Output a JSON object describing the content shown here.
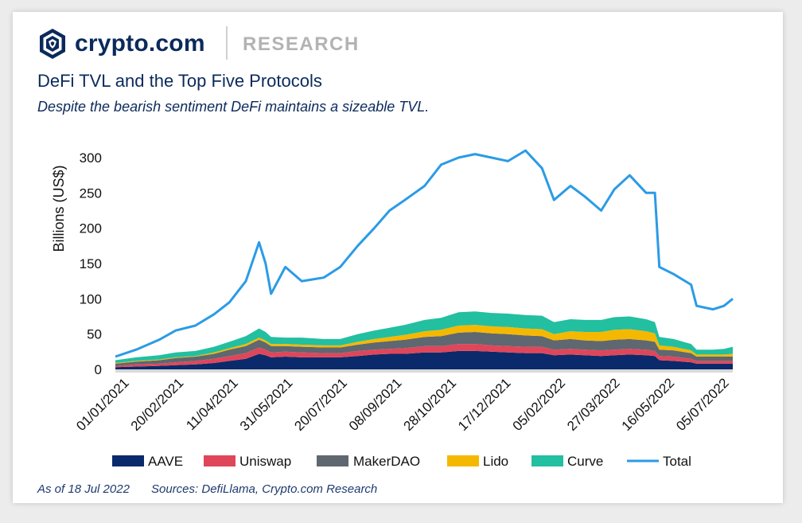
{
  "brand": {
    "name": "crypto.com",
    "tag": "RESEARCH"
  },
  "header": {
    "title": "DeFi TVL and the Top Five Protocols",
    "subtitle": "Despite the bearish sentiment DeFi maintains a sizeable TVL."
  },
  "footer": {
    "as_of": "As of 18 Jul 2022",
    "sources": "Sources: DefiLlama, Crypto.com Research"
  },
  "colors": {
    "AAVE": "#0b2a6b",
    "Uniswap": "#e0465a",
    "MakerDAO": "#5f6770",
    "Lido": "#f5b800",
    "Curve": "#22bfa0",
    "Total": "#2b9be6",
    "baseline": "#d9d9d9"
  },
  "chart_data": {
    "type": "area",
    "title": "DeFi TVL and the Top Five Protocols",
    "xlabel": "",
    "ylabel": "Billions (US$)",
    "ylim": [
      0,
      300
    ],
    "yticks": [
      0,
      50,
      100,
      150,
      200,
      250,
      300
    ],
    "xlim": [
      "2021-01-01",
      "2022-07-18"
    ],
    "xticks": [
      "01/01/2021",
      "20/02/2021",
      "11/04/2021",
      "31/05/2021",
      "20/07/2021",
      "08/09/2021",
      "28/10/2021",
      "17/12/2021",
      "05/02/2022",
      "27/03/2022",
      "16/05/2022",
      "05/07/2022"
    ],
    "stacked": true,
    "legend_position": "bottom",
    "x": [
      "2021-01-01",
      "2021-01-20",
      "2021-02-10",
      "2021-02-25",
      "2021-03-15",
      "2021-04-01",
      "2021-04-15",
      "2021-04-30",
      "2021-05-12",
      "2021-05-18",
      "2021-05-23",
      "2021-06-05",
      "2021-06-20",
      "2021-07-10",
      "2021-07-25",
      "2021-08-10",
      "2021-08-25",
      "2021-09-08",
      "2021-09-22",
      "2021-10-10",
      "2021-10-25",
      "2021-11-10",
      "2021-11-25",
      "2021-12-10",
      "2021-12-25",
      "2022-01-10",
      "2022-01-25",
      "2022-02-05",
      "2022-02-20",
      "2022-03-05",
      "2022-03-20",
      "2022-04-01",
      "2022-04-15",
      "2022-04-30",
      "2022-05-08",
      "2022-05-12",
      "2022-05-25",
      "2022-06-10",
      "2022-06-15",
      "2022-06-30",
      "2022-07-10",
      "2022-07-18"
    ],
    "series": [
      {
        "name": "AAVE",
        "values": [
          3,
          4,
          5,
          6,
          7,
          9,
          12,
          15,
          22,
          20,
          17,
          18,
          17,
          17,
          17,
          19,
          21,
          22,
          22,
          24,
          24,
          26,
          26,
          25,
          24,
          23,
          23,
          20,
          21,
          20,
          19,
          20,
          21,
          20,
          19,
          13,
          12,
          10,
          8,
          8,
          8,
          8
        ]
      },
      {
        "name": "Uniswap",
        "values": [
          2,
          3,
          3,
          4,
          5,
          6,
          7,
          8,
          9,
          8,
          7,
          7,
          7,
          6,
          6,
          7,
          7,
          7,
          8,
          9,
          9,
          10,
          10,
          9,
          9,
          9,
          9,
          8,
          8,
          8,
          8,
          8,
          8,
          8,
          7,
          6,
          6,
          5,
          4,
          4,
          4,
          4
        ]
      },
      {
        "name": "MakerDAO",
        "values": [
          3,
          4,
          5,
          6,
          6,
          7,
          9,
          10,
          11,
          10,
          9,
          8,
          8,
          8,
          8,
          9,
          10,
          11,
          12,
          13,
          14,
          16,
          17,
          17,
          17,
          16,
          15,
          13,
          14,
          13,
          13,
          14,
          14,
          13,
          13,
          9,
          9,
          8,
          6,
          6,
          6,
          6
        ]
      },
      {
        "name": "Lido",
        "values": [
          1,
          1,
          1,
          1,
          1,
          2,
          2,
          3,
          3,
          3,
          3,
          3,
          3,
          3,
          3,
          4,
          5,
          6,
          7,
          8,
          9,
          10,
          10,
          10,
          10,
          10,
          10,
          9,
          11,
          12,
          13,
          14,
          14,
          13,
          12,
          6,
          5,
          4,
          3,
          3,
          3,
          4
        ]
      },
      {
        "name": "Curve",
        "values": [
          4,
          5,
          6,
          7,
          7,
          8,
          9,
          11,
          13,
          12,
          10,
          9,
          10,
          9,
          9,
          11,
          12,
          13,
          14,
          16,
          17,
          19,
          19,
          19,
          19,
          19,
          19,
          17,
          17,
          17,
          17,
          18,
          18,
          17,
          16,
          12,
          11,
          9,
          7,
          7,
          8,
          10
        ]
      },
      {
        "name": "Total",
        "values": [
          18,
          28,
          42,
          55,
          62,
          78,
          95,
          125,
          180,
          150,
          107,
          145,
          125,
          130,
          145,
          175,
          200,
          225,
          240,
          260,
          290,
          300,
          305,
          300,
          295,
          310,
          285,
          240,
          260,
          245,
          225,
          255,
          275,
          250,
          250,
          145,
          135,
          120,
          90,
          85,
          90,
          100
        ]
      }
    ]
  }
}
